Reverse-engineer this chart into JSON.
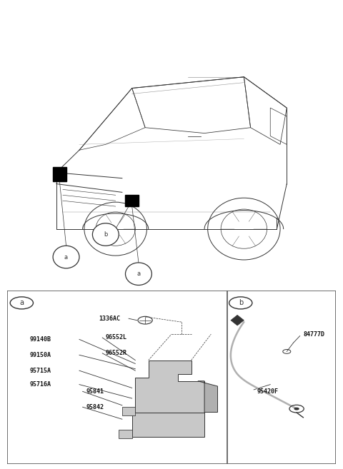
{
  "bg_color": "#ffffff",
  "fig_width": 4.8,
  "fig_height": 6.57,
  "dpi": 100,
  "line_color": "#333333",
  "gray1": "#b0b0b0",
  "gray2": "#c8c8c8",
  "gray3": "#909090",
  "text_color": "#111111",
  "panel_border": "#555555",
  "part_labels_left": [
    "99140B",
    "99150A",
    "95715A",
    "95716A"
  ],
  "part_labels_mid": [
    "96552L",
    "96552R"
  ],
  "part_label_top": "1336AC",
  "part_labels_bot": [
    "95841",
    "95842"
  ],
  "part_label_b1": "84777D",
  "part_label_b2": "95420F",
  "callout_a": "a",
  "callout_b": "b"
}
